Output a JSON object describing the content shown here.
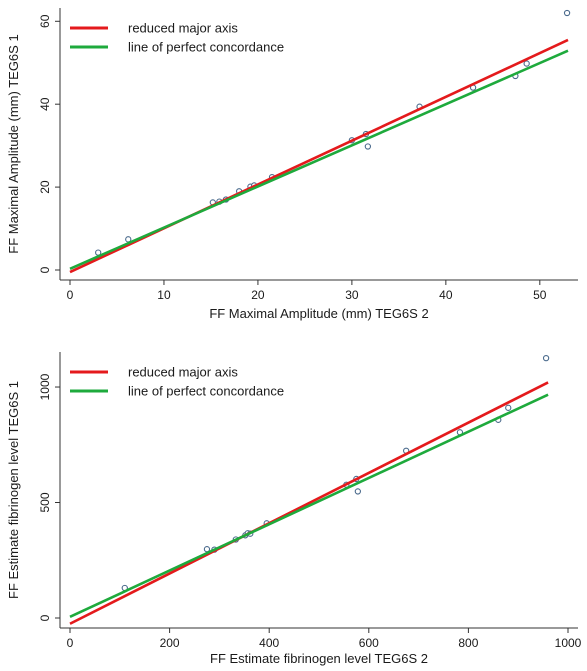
{
  "chart_data": [
    {
      "type": "scatter",
      "title": "",
      "xlabel": "FF Maximal Amplitude (mm) TEG6S 2",
      "ylabel": "FF Maximal Amplitude (mm) TEG6S 1",
      "xlim": [
        0,
        53
      ],
      "ylim": [
        0,
        62
      ],
      "xticks": [
        0,
        10,
        20,
        30,
        40,
        50
      ],
      "yticks": [
        0,
        20,
        40,
        60
      ],
      "points": [
        {
          "x": 3.0,
          "y": 4.2
        },
        {
          "x": 6.2,
          "y": 7.4
        },
        {
          "x": 15.2,
          "y": 16.3
        },
        {
          "x": 15.9,
          "y": 16.5
        },
        {
          "x": 16.6,
          "y": 17.0
        },
        {
          "x": 18.0,
          "y": 19.0
        },
        {
          "x": 19.2,
          "y": 20.1
        },
        {
          "x": 19.6,
          "y": 20.4
        },
        {
          "x": 21.5,
          "y": 22.4
        },
        {
          "x": 30.0,
          "y": 31.3
        },
        {
          "x": 31.5,
          "y": 32.8
        },
        {
          "x": 31.7,
          "y": 29.8
        },
        {
          "x": 37.2,
          "y": 39.4
        },
        {
          "x": 42.9,
          "y": 44.0
        },
        {
          "x": 47.4,
          "y": 46.8
        },
        {
          "x": 48.6,
          "y": 49.8
        },
        {
          "x": 52.9,
          "y": 62.0
        }
      ],
      "series": [
        {
          "name": "reduced major axis",
          "color": "#e41a1c",
          "x": [
            0,
            53
          ],
          "y": [
            -0.5,
            55.5
          ]
        },
        {
          "name": "line of perfect concordance",
          "color": "#1eaa3c",
          "x": [
            0,
            53
          ],
          "y": [
            0.3,
            52.9
          ]
        }
      ],
      "legend_position": "top-left",
      "grid": false
    },
    {
      "type": "scatter",
      "title": "",
      "xlabel": "FF Estimate fibrinogen level TEG6S 2",
      "ylabel": "FF Estimate fibrinogen level TEG6S 1",
      "xlim": [
        0,
        1000
      ],
      "ylim": [
        0,
        1130
      ],
      "xticks": [
        0,
        200,
        400,
        600,
        800,
        1000
      ],
      "yticks": [
        0,
        500,
        1000
      ],
      "points": [
        {
          "x": 110,
          "y": 130
        },
        {
          "x": 275,
          "y": 298
        },
        {
          "x": 290,
          "y": 296
        },
        {
          "x": 333,
          "y": 340
        },
        {
          "x": 352,
          "y": 358
        },
        {
          "x": 357,
          "y": 367
        },
        {
          "x": 362,
          "y": 365
        },
        {
          "x": 395,
          "y": 410
        },
        {
          "x": 555,
          "y": 577
        },
        {
          "x": 575,
          "y": 602
        },
        {
          "x": 578,
          "y": 548
        },
        {
          "x": 675,
          "y": 724
        },
        {
          "x": 783,
          "y": 804
        },
        {
          "x": 860,
          "y": 858
        },
        {
          "x": 880,
          "y": 910
        },
        {
          "x": 956,
          "y": 1125
        }
      ],
      "series": [
        {
          "name": "reduced major axis",
          "color": "#e41a1c",
          "x": [
            0,
            960
          ],
          "y": [
            -25,
            1020
          ]
        },
        {
          "name": "line of perfect concordance",
          "color": "#1eaa3c",
          "x": [
            0,
            960
          ],
          "y": [
            5,
            967
          ]
        }
      ],
      "legend_position": "top-left",
      "grid": false
    }
  ]
}
